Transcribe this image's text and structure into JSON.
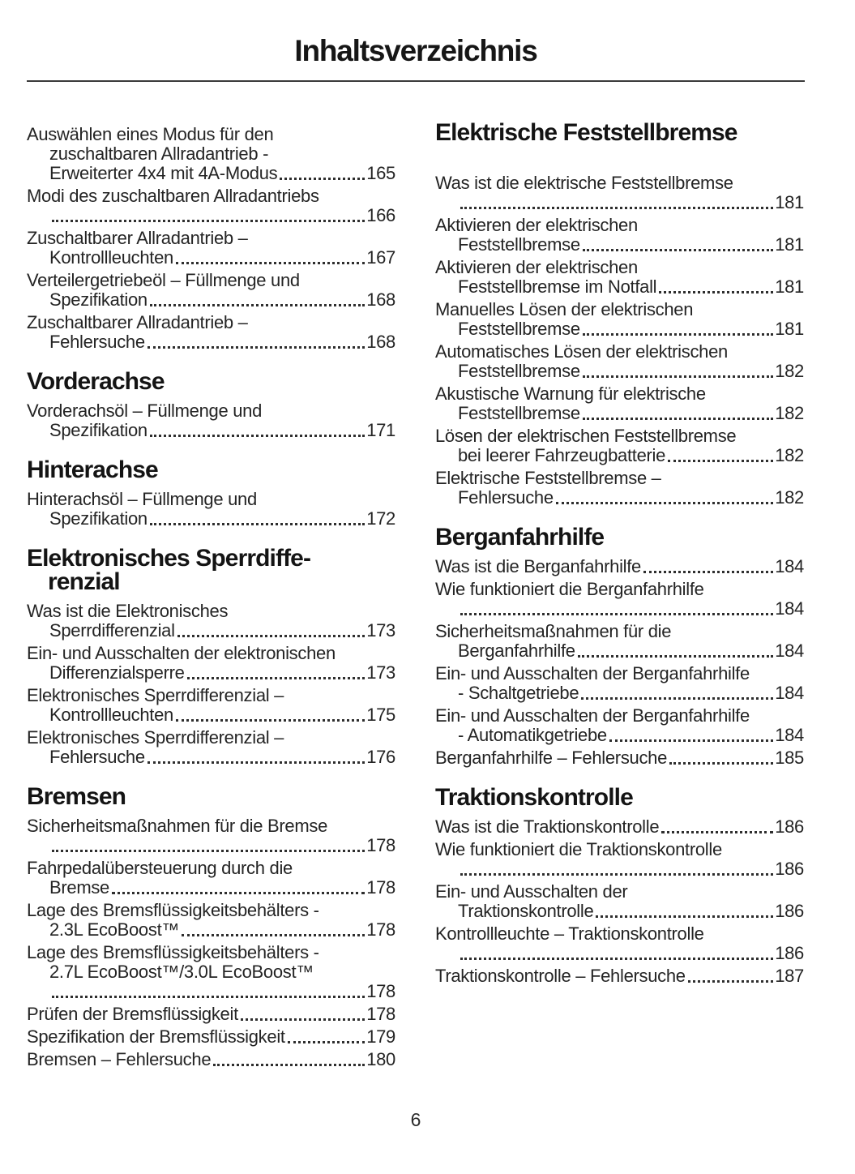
{
  "document": {
    "title": "Inhaltsverzeichnis",
    "page_number": "6"
  },
  "colors": {
    "rule": "#3a3a3a",
    "body_text": "#242424",
    "heading_text": "#141414"
  },
  "toc": {
    "columns": [
      {
        "blocks": [
          {
            "type": "entries",
            "items": [
              {
                "pre": [
                  "Auswählen eines Modus für den",
                  "zuschaltbaren Allradantrieb -"
                ],
                "end": "Erweiterter 4x4 mit 4A-Modus",
                "page": "165"
              },
              {
                "pre": [
                  "Modi des zuschaltbaren Allradantriebs"
                ],
                "end": "",
                "page": "166"
              },
              {
                "pre": [
                  "Zuschaltbarer Allradantrieb –"
                ],
                "end": "Kontrollleuchten",
                "page": "167"
              },
              {
                "pre": [
                  "Verteilergetriebeöl – Füllmenge und"
                ],
                "end": "Spezifikation",
                "page": "168"
              },
              {
                "pre": [
                  "Zuschaltbarer Allradantrieb –"
                ],
                "end": "Fehlersuche",
                "page": "168"
              }
            ]
          },
          {
            "type": "heading",
            "lines": [
              "Vorderachse"
            ],
            "chapter_start": false
          },
          {
            "type": "entries",
            "items": [
              {
                "pre": [
                  "Vorderachsöl – Füllmenge und"
                ],
                "end": "Spezifikation",
                "page": "171"
              }
            ]
          },
          {
            "type": "heading",
            "lines": [
              "Hinterachse"
            ],
            "chapter_start": false
          },
          {
            "type": "entries",
            "items": [
              {
                "pre": [
                  "Hinterachsöl – Füllmenge und"
                ],
                "end": "Spezifikation",
                "page": "172"
              }
            ]
          },
          {
            "type": "heading",
            "lines": [
              "Elektronisches Sperrdiffe-",
              "renzial"
            ],
            "chapter_start": false
          },
          {
            "type": "entries",
            "items": [
              {
                "pre": [
                  "Was ist die Elektronisches"
                ],
                "end": "Sperrdifferenzial",
                "page": "173"
              },
              {
                "pre": [
                  "Ein- und Ausschalten der elektronischen"
                ],
                "end": "Differenzialsperre",
                "page": "173"
              },
              {
                "pre": [
                  "Elektronisches Sperrdifferenzial –"
                ],
                "end": "Kontrollleuchten",
                "page": "175"
              },
              {
                "pre": [
                  "Elektronisches Sperrdifferenzial –"
                ],
                "end": "Fehlersuche",
                "page": "176"
              }
            ]
          },
          {
            "type": "heading",
            "lines": [
              "Bremsen"
            ],
            "chapter_start": false
          },
          {
            "type": "entries",
            "items": [
              {
                "pre": [
                  "Sicherheitsmaßnahmen für die Bremse"
                ],
                "end": "",
                "page": "178"
              },
              {
                "pre": [
                  "Fahrpedalübersteuerung durch die"
                ],
                "end": "Bremse",
                "page": "178"
              },
              {
                "pre": [
                  "Lage des Bremsflüssigkeitsbehälters -"
                ],
                "end": "2.3L EcoBoost™",
                "page": "178"
              },
              {
                "pre": [
                  "Lage des Bremsflüssigkeitsbehälters -",
                  "2.7L EcoBoost™/3.0L EcoBoost™"
                ],
                "end": "",
                "page": "178"
              },
              {
                "pre": [],
                "end": "Prüfen der Bremsflüssigkeit",
                "page": "178"
              },
              {
                "pre": [],
                "end": "Spezifikation der Bremsflüssigkeit",
                "page": "179"
              },
              {
                "pre": [],
                "end": "Bremsen – Fehlersuche",
                "page": "180"
              }
            ]
          }
        ]
      },
      {
        "blocks": [
          {
            "type": "heading",
            "lines": [
              "Elektrische Feststellbremse"
            ],
            "chapter_start": true
          },
          {
            "type": "entries",
            "items": [
              {
                "pre": [
                  "Was ist die elektrische Feststellbremse"
                ],
                "end": "",
                "page": "181"
              },
              {
                "pre": [
                  "Aktivieren der elektrischen"
                ],
                "end": "Feststellbremse",
                "page": "181"
              },
              {
                "pre": [
                  "Aktivieren der elektrischen"
                ],
                "end": "Feststellbremse im Notfall",
                "page": "181"
              },
              {
                "pre": [
                  "Manuelles Lösen der elektrischen"
                ],
                "end": "Feststellbremse",
                "page": "181"
              },
              {
                "pre": [
                  "Automatisches Lösen der elektrischen"
                ],
                "end": "Feststellbremse",
                "page": "182"
              },
              {
                "pre": [
                  "Akustische Warnung für elektrische"
                ],
                "end": "Feststellbremse",
                "page": "182"
              },
              {
                "pre": [
                  "Lösen der elektrischen Feststellbremse"
                ],
                "end": "bei leerer Fahrzeugbatterie",
                "page": "182"
              },
              {
                "pre": [
                  "Elektrische Feststellbremse –"
                ],
                "end": "Fehlersuche",
                "page": "182"
              }
            ]
          },
          {
            "type": "heading",
            "lines": [
              "Berganfahrhilfe"
            ],
            "chapter_start": false
          },
          {
            "type": "entries",
            "items": [
              {
                "pre": [],
                "end": "Was ist die Berganfahrhilfe",
                "page": "184"
              },
              {
                "pre": [
                  "Wie funktioniert die Berganfahrhilfe"
                ],
                "end": "",
                "page": "184"
              },
              {
                "pre": [
                  "Sicherheitsmaßnahmen für die"
                ],
                "end": "Berganfahrhilfe",
                "page": "184"
              },
              {
                "pre": [
                  "Ein- und Ausschalten der Berganfahrhilfe"
                ],
                "end": "- Schaltgetriebe",
                "page": "184"
              },
              {
                "pre": [
                  "Ein- und Ausschalten der Berganfahrhilfe"
                ],
                "end": "- Automatikgetriebe",
                "page": "184"
              },
              {
                "pre": [],
                "end": "Berganfahrhilfe – Fehlersuche",
                "page": "185"
              }
            ]
          },
          {
            "type": "heading",
            "lines": [
              "Traktionskontrolle"
            ],
            "chapter_start": false
          },
          {
            "type": "entries",
            "items": [
              {
                "pre": [],
                "end": "Was ist die Traktionskontrolle",
                "page": "186"
              },
              {
                "pre": [
                  "Wie funktioniert die Traktionskontrolle"
                ],
                "end": "",
                "page": "186"
              },
              {
                "pre": [
                  "Ein- und Ausschalten der"
                ],
                "end": "Traktionskontrolle",
                "page": "186"
              },
              {
                "pre": [
                  "Kontrollleuchte – Traktionskontrolle"
                ],
                "end": "",
                "page": "186"
              },
              {
                "pre": [],
                "end": "Traktionskontrolle – Fehlersuche",
                "page": "187"
              }
            ]
          }
        ]
      }
    ]
  }
}
